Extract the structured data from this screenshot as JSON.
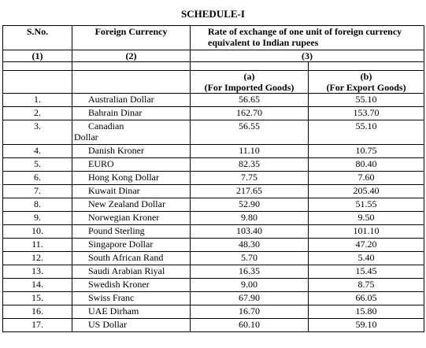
{
  "title": "SCHEDULE-I",
  "headers": {
    "sno": "S.No.",
    "currency": "Foreign Currency",
    "rate": "Rate of exchange of one unit of foreign currency equivalent to Indian rupees",
    "col1": "(1)",
    "col2": "(2)",
    "col3": "(3)",
    "sub_a": "(a)",
    "sub_b": "(b)",
    "imported": "(For Imported Goods)",
    "export": "(For Export Goods)"
  },
  "rows": [
    {
      "sno": "1.",
      "currency": "Australian Dollar",
      "imported": "56.65",
      "export": "55.10"
    },
    {
      "sno": "2.",
      "currency": "Bahrain Dinar",
      "imported": "162.70",
      "export": "153.70"
    },
    {
      "sno": "3.",
      "currency": "Canadian",
      "currency2": "Dollar",
      "imported": "56.55",
      "export": "55.10"
    },
    {
      "sno": "4.",
      "currency": "Danish Kroner",
      "imported": "11.10",
      "export": "10.75"
    },
    {
      "sno": "5.",
      "currency": "EURO",
      "imported": "82.35",
      "export": "80.40"
    },
    {
      "sno": "6.",
      "currency": "Hong Kong Dollar",
      "imported": "7.75",
      "export": "7.60"
    },
    {
      "sno": "7.",
      "currency": "Kuwait Dinar",
      "imported": "217.65",
      "export": "205.40"
    },
    {
      "sno": "8.",
      "currency": "New Zealand Dollar",
      "imported": "52.90",
      "export": "51.55"
    },
    {
      "sno": "9.",
      "currency": "Norwegian Kroner",
      "imported": "9.80",
      "export": "9.50"
    },
    {
      "sno": "10.",
      "currency": "Pound Sterling",
      "imported": "103.40",
      "export": "101.10"
    },
    {
      "sno": "11.",
      "currency": "Singapore Dollar",
      "imported": "48.30",
      "export": "47.20"
    },
    {
      "sno": "12.",
      "currency": "South African Rand",
      "imported": "5.70",
      "export": "5.40"
    },
    {
      "sno": "13.",
      "currency": "Saudi Arabian Riyal",
      "imported": "16.35",
      "export": "15.45"
    },
    {
      "sno": "14.",
      "currency": "Swedish Kroner",
      "imported": "9.00",
      "export": "8.75"
    },
    {
      "sno": "15.",
      "currency": "Swiss Franc",
      "imported": "67.90",
      "export": "66.05"
    },
    {
      "sno": "16.",
      "currency": "UAE Dirham",
      "imported": "16.70",
      "export": "15.80"
    },
    {
      "sno": "17.",
      "currency": "US Dollar",
      "imported": "60.10",
      "export": "59.10"
    }
  ]
}
